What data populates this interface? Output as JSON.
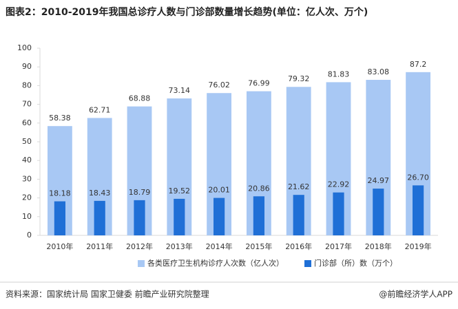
{
  "chart_data": {
    "type": "bar",
    "overlap": true,
    "title": "图表2：2010-2019年我国总诊疗人数与门诊部数量增长趋势(单位：亿人次、万个)",
    "categories": [
      "2010年",
      "2011年",
      "2012年",
      "2013年",
      "2014年",
      "2015年",
      "2016年",
      "2017年",
      "2018年",
      "2019年"
    ],
    "series": [
      {
        "name": "各类医疗卫生机构诊疗人次数（亿人次）",
        "color": "#a8c8f4",
        "values": [
          58.38,
          62.71,
          68.88,
          73.14,
          76.02,
          76.99,
          79.32,
          81.83,
          83.08,
          87.2
        ]
      },
      {
        "name": "门诊部（所）数（万个）",
        "color": "#1f6fd6",
        "values": [
          18.18,
          18.43,
          18.79,
          19.52,
          20.01,
          20.86,
          21.62,
          22.92,
          24.97,
          26.7
        ],
        "value_labels": [
          "18.18",
          "18.43",
          "18.79",
          "19.52",
          "20.01",
          "20.86",
          "21.62",
          "22.92",
          "24.97",
          "26.70"
        ]
      }
    ],
    "ylim": [
      0,
      100
    ],
    "yticks": [
      0,
      10,
      20,
      30,
      40,
      50,
      60,
      70,
      80,
      90,
      100
    ],
    "grid": false,
    "legend": "bottom",
    "source": "资料来源：国家统计局 国家卫健委 前瞻产业研究院整理",
    "credit": "@前瞻经济学人APP"
  }
}
